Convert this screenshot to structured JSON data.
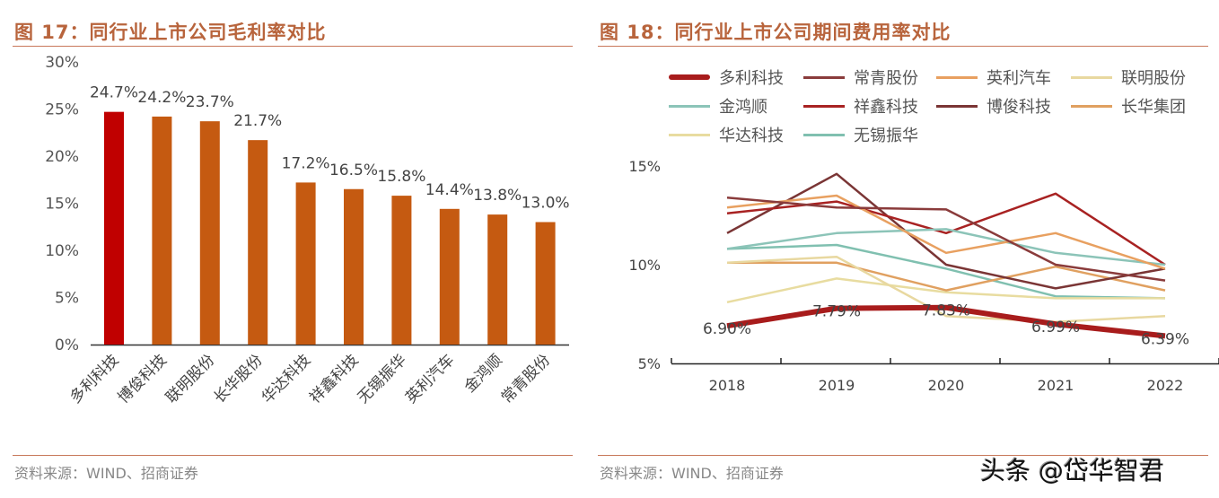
{
  "left": {
    "title": "图 17：同行业上市公司毛利率对比",
    "source": "资料来源：WIND、招商证券"
  },
  "right": {
    "title": "图 18：同行业上市公司期间费用率对比",
    "source": "资料来源：WIND、招商证券"
  },
  "watermark": "头条 @岱华智君",
  "chart_data": [
    {
      "type": "bar",
      "categories": [
        "多利科技",
        "博俊科技",
        "联明股份",
        "长华股份",
        "华达科技",
        "祥鑫科技",
        "无锡振华",
        "英利汽车",
        "金鸿顺",
        "常青股份"
      ],
      "values": [
        24.7,
        24.2,
        23.7,
        21.7,
        17.2,
        16.5,
        15.8,
        14.4,
        13.8,
        13.0
      ],
      "data_labels": [
        "24.7%",
        "24.2%",
        "23.7%",
        "21.7%",
        "17.2%",
        "16.5%",
        "15.8%",
        "14.4%",
        "13.8%",
        "13.0%"
      ],
      "highlight_color": "#c00000",
      "bar_color": "#c55a11",
      "ylim": [
        0,
        30
      ],
      "yticks": [
        "0%",
        "5%",
        "10%",
        "15%",
        "20%",
        "25%",
        "30%"
      ],
      "grid": false
    },
    {
      "type": "line",
      "x": [
        "2018",
        "2019",
        "2020",
        "2021",
        "2022"
      ],
      "ylim": [
        5,
        15
      ],
      "yticks": [
        "5%",
        "10%",
        "15%"
      ],
      "grid": false,
      "legend": "top",
      "series": [
        {
          "name": "多利科技",
          "values": [
            6.9,
            7.79,
            7.83,
            6.99,
            6.39
          ],
          "color": "#a81c1c",
          "labels": [
            "6.90%",
            "7.79%",
            "7.83%",
            "6.99%",
            "6.39%"
          ],
          "bold": true
        },
        {
          "name": "常青股份",
          "values": [
            13.4,
            12.9,
            12.8,
            10.0,
            9.2
          ],
          "color": "#8a3b3b"
        },
        {
          "name": "英利汽车",
          "values": [
            12.9,
            13.5,
            10.6,
            11.6,
            9.8
          ],
          "color": "#e8a060"
        },
        {
          "name": "联明股份",
          "values": [
            10.1,
            10.4,
            7.4,
            7.1,
            7.4
          ],
          "color": "#e8d8a0"
        },
        {
          "name": "金鸿顺",
          "values": [
            10.8,
            11.6,
            11.8,
            10.6,
            10.0
          ],
          "color": "#8cc4b8"
        },
        {
          "name": "祥鑫科技",
          "values": [
            12.6,
            13.2,
            11.6,
            13.6,
            10.0
          ],
          "color": "#a82222"
        },
        {
          "name": "博俊科技",
          "values": [
            11.6,
            14.6,
            10.0,
            8.8,
            9.8
          ],
          "color": "#7a3535"
        },
        {
          "name": "长华集团",
          "values": [
            10.1,
            10.1,
            8.7,
            9.9,
            8.7
          ],
          "color": "#e0a060"
        },
        {
          "name": "华达科技",
          "values": [
            8.1,
            9.3,
            8.6,
            8.3,
            8.3
          ],
          "color": "#e8dca0"
        },
        {
          "name": "无锡振华",
          "values": [
            10.8,
            11.0,
            9.8,
            8.4,
            8.3
          ],
          "color": "#80c0b0"
        }
      ]
    }
  ]
}
